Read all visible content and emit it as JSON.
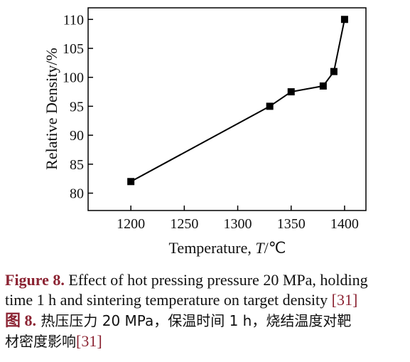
{
  "chart_data": {
    "type": "line",
    "x": [
      1200,
      1330,
      1350,
      1380,
      1390,
      1400
    ],
    "series": [
      {
        "values": [
          82,
          95,
          97.5,
          98.5,
          101,
          110
        ]
      }
    ],
    "xlabel_prefix": "Temperature, ",
    "xlabel_var": "T",
    "xlabel_unit": "/℃",
    "ylabel": "Relative Density/%",
    "xlim": [
      1160,
      1420
    ],
    "ylim": [
      77,
      112
    ],
    "xticks": [
      1200,
      1250,
      1300,
      1350,
      1400
    ],
    "yticks": [
      80,
      85,
      90,
      95,
      100,
      105,
      110
    ],
    "marker": "square",
    "grid": false,
    "colors": {
      "line": "#000000",
      "marker": "#000000"
    }
  },
  "caption": {
    "en_label": "Figure 8.",
    "en_line1": " Effect of hot pressing pressure 20 MPa, holding",
    "en_line2": "time 1 h and sintering temperature on target density ",
    "en_ref": "[31]",
    "zh_label": "图 8.",
    "zh_line1": " 热压压力 20 MPa，保温时间 1 h，烧结温度对靶",
    "zh_line2": "材密度影响",
    "zh_ref": "[31]"
  },
  "colors": {
    "caption_label": "#8b2332"
  }
}
